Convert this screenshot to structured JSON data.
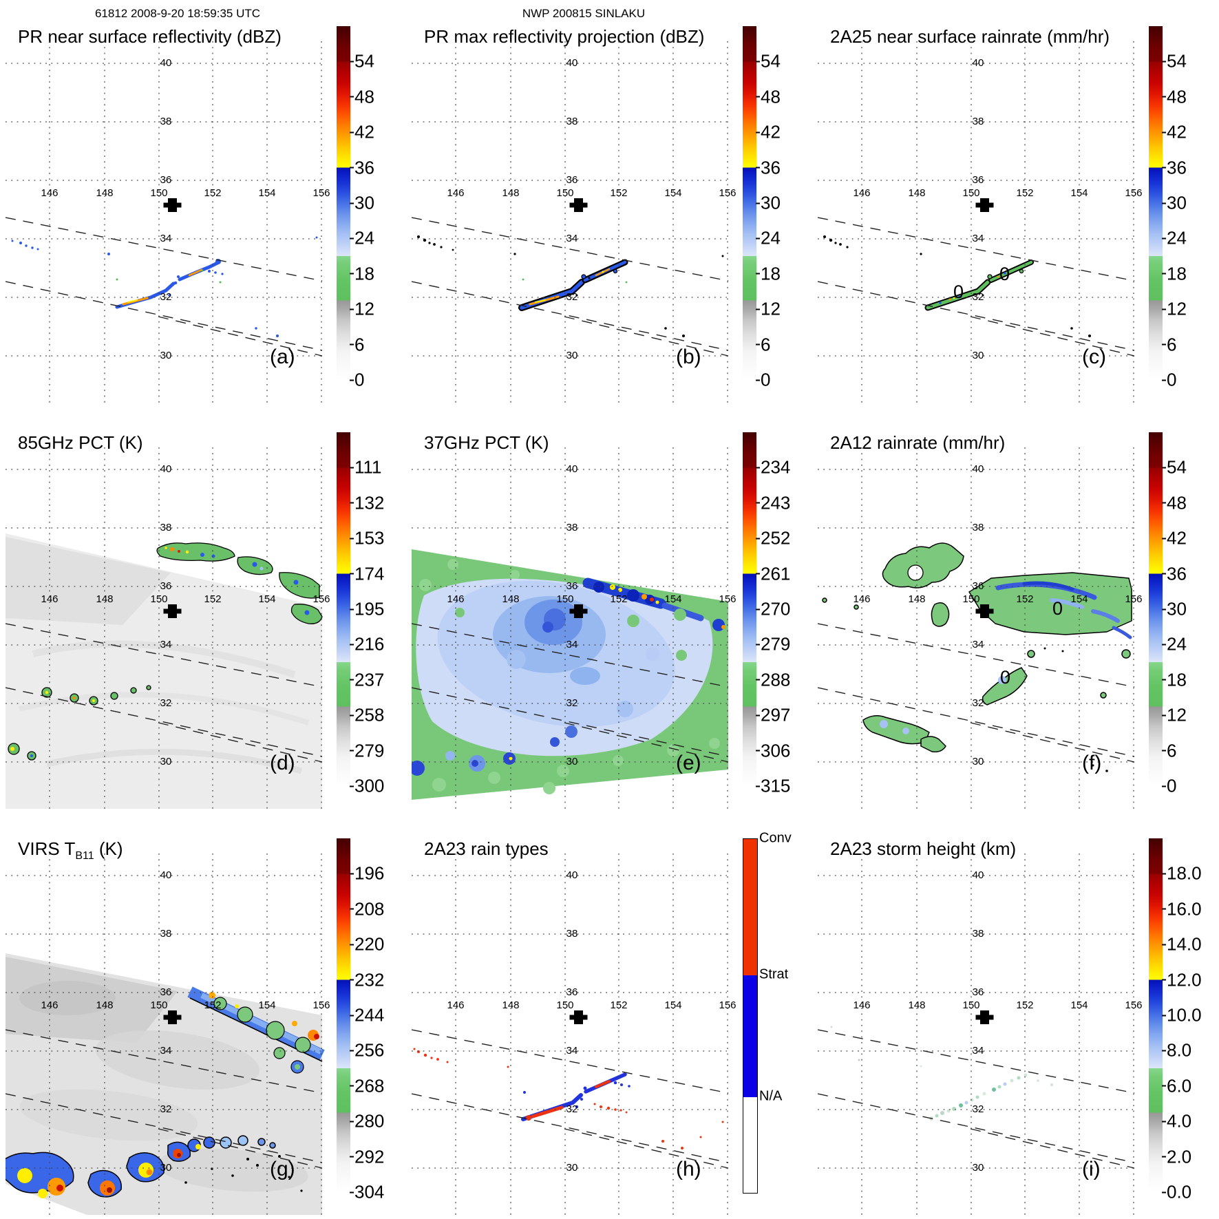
{
  "figure": {
    "header_left": "61812 2008-9-20 18:59:35 UTC",
    "header_center": "NWP 200815 SINLAKU"
  },
  "maps": {
    "lon_labels": [
      "146",
      "148",
      "150",
      "152",
      "154",
      "156"
    ],
    "lat_labels": [
      "40",
      "38",
      "36",
      "34",
      "32",
      "30"
    ],
    "contour_zero": "0"
  },
  "panels": [
    {
      "id": "a",
      "letter": "(a)",
      "header": "61812 2008-9-20 18:59:35 UTC",
      "title": "PR near surface reflectivity (dBZ)",
      "colorbar": {
        "type": "reflectivity",
        "ticks": [
          "54",
          "48",
          "42",
          "36",
          "30",
          "24",
          "18",
          "12",
          "6",
          "0"
        ]
      }
    },
    {
      "id": "b",
      "letter": "(b)",
      "header": "NWP 200815 SINLAKU",
      "title": "PR max reflectivity projection (dBZ)",
      "colorbar": {
        "type": "reflectivity",
        "ticks": [
          "54",
          "48",
          "42",
          "36",
          "30",
          "24",
          "18",
          "12",
          "6",
          "0"
        ]
      }
    },
    {
      "id": "c",
      "letter": "(c)",
      "title": "2A25 near surface rainrate (mm/hr)",
      "colorbar": {
        "type": "reflectivity",
        "ticks": [
          "54",
          "48",
          "42",
          "36",
          "30",
          "24",
          "18",
          "12",
          "6",
          "0"
        ]
      }
    },
    {
      "id": "d",
      "letter": "(d)",
      "title": "85GHz PCT (K)",
      "colorbar": {
        "type": "pct",
        "ticks": [
          "111",
          "132",
          "153",
          "174",
          "195",
          "216",
          "237",
          "258",
          "279",
          "300"
        ]
      }
    },
    {
      "id": "e",
      "letter": "(e)",
      "title": "37GHz PCT (K)",
      "colorbar": {
        "type": "pct",
        "ticks": [
          "234",
          "243",
          "252",
          "261",
          "270",
          "279",
          "288",
          "297",
          "306",
          "315"
        ]
      }
    },
    {
      "id": "f",
      "letter": "(f)",
      "title": "2A12 rainrate (mm/hr)",
      "colorbar": {
        "type": "reflectivity",
        "ticks": [
          "54",
          "48",
          "42",
          "36",
          "30",
          "24",
          "18",
          "12",
          "6",
          "0"
        ]
      }
    },
    {
      "id": "g",
      "letter": "(g)",
      "title_pre": "VIRS T",
      "title_sub": "B11",
      "title_post": " (K)",
      "colorbar": {
        "type": "pct",
        "ticks": [
          "196",
          "208",
          "220",
          "232",
          "244",
          "256",
          "268",
          "280",
          "292",
          "304"
        ]
      }
    },
    {
      "id": "h",
      "letter": "(h)",
      "title": "2A23 rain types",
      "colorbar": {
        "type": "raintype",
        "labels": [
          "Conv",
          "Strat",
          "N/A"
        ]
      }
    },
    {
      "id": "i",
      "letter": "(i)",
      "title": "2A23 storm height (km)",
      "colorbar": {
        "type": "height",
        "ticks": [
          "18.0",
          "16.0",
          "14.0",
          "12.0",
          "10.0",
          "8.0",
          "6.0",
          "4.0",
          "2.0",
          "0.0"
        ]
      }
    }
  ],
  "chart_data": {
    "type": "heatmap",
    "layout": "3x3 geographic map panels, shared grid",
    "geo": {
      "lon_ticks": [
        146,
        148,
        150,
        152,
        154,
        156
      ],
      "lat_ticks": [
        40,
        38,
        36,
        34,
        32,
        30
      ],
      "lon_range": [
        144.4,
        157.2
      ],
      "lat_range": [
        28.4,
        40.8
      ],
      "grid": "dotted",
      "swath_edges": "three dashed diagonal lines sloping down to the east",
      "storm_center_marker": {
        "lon": 150.5,
        "lat": 35.2,
        "symbol": "black cross"
      }
    },
    "panels": [
      {
        "id": "a",
        "title": "PR near surface reflectivity (dBZ)",
        "units": "dBZ",
        "colorbar_ticks": [
          54,
          48,
          42,
          36,
          30,
          24,
          18,
          12,
          6,
          0
        ],
        "colorbar_over": ">54 dark maroon",
        "features": "broken narrow rainband from about (148.6E,31.6N) to (152.3E,33.1N) with 20-45 dBZ cells (blue with orange/yellow cores); weak scattered echoes near 145-146E,33.3N"
      },
      {
        "id": "b",
        "title": "PR max reflectivity projection (dBZ)",
        "units": "dBZ",
        "colorbar_ticks": [
          54,
          48,
          42,
          36,
          30,
          24,
          18,
          12,
          6,
          0
        ],
        "features": "same rainband as (a) but black-outlined, broader, with blue/orange/yellow interior; scattered black specks west of band"
      },
      {
        "id": "c",
        "title": "2A25 near surface rainrate (mm/hr)",
        "units": "mm/hr",
        "colorbar_ticks": [
          54,
          48,
          42,
          36,
          30,
          24,
          18,
          12,
          6,
          0
        ],
        "features": "rainband outlined in black filled mostly green (light rain) with small blue/orange flecks; two 0 mm/hr contour labels on the band"
      },
      {
        "id": "d",
        "title": "85GHz PCT (K)",
        "units": "K",
        "colorbar_ticks": [
          111,
          132,
          153,
          174,
          195,
          216,
          237,
          258,
          279,
          300
        ],
        "features": "light gray TMI swath covering most of panel; black-outlined green/blue/orange ice-scattering band near 36N,150-156E; small outlined cells near 32N,146.5-149E and 31N,144.5E"
      },
      {
        "id": "e",
        "title": "37GHz PCT (K)",
        "units": "K",
        "colorbar_ticks": [
          234,
          243,
          252,
          261,
          270,
          279,
          288,
          297,
          306,
          315
        ],
        "features": "full swath colored: green (~288-300K) edges, pale blue (~279K) interior, darker blue (~270K) core near 34N,150E, dark blue band with yellow/orange/red minima near 36N,151-153E, blue cells near 31N,147-149E"
      },
      {
        "id": "f",
        "title": "2A12 rainrate (mm/hr)",
        "units": "mm/hr",
        "colorbar_ticks": [
          54,
          48,
          42,
          36,
          30,
          24,
          18,
          12,
          6,
          0
        ],
        "features": "black-outlined green light-rain regions near 35.5N,147-149E and a large region 34-35.5N,150-157E containing blue (12-30 mm/hr) streaks; smaller green cells near 31-32N; 0 contour labels"
      },
      {
        "id": "g",
        "title": "VIRS TB11 (K)",
        "units": "K",
        "colorbar_ticks": [
          196,
          208,
          220,
          232,
          244,
          256,
          268,
          280,
          292,
          304
        ],
        "features": "grayscale cloud field over whole swath; deep convective band (blue/green outline with yellow/orange/red cold tops <232K) from 29.5N,144.5E to 32N,150E; blue cloud line 32.5N,151-153E; cold green/blue band with orange cells along 36N,151-157E"
      },
      {
        "id": "h",
        "title": "2A23 rain types",
        "categories": [
          "Conv",
          "Strat",
          "N/A"
        ],
        "features": "rainband pixels classified: blue stratiform with embedded red convective cores along band from 148.6E,31.6N to 152.3E,33.1N; scattered red convective specks near 145E,33.5N and 152-153E,31.8N"
      },
      {
        "id": "i",
        "title": "2A23 storm height (km)",
        "units": "km",
        "colorbar_ticks": [
          18.0,
          16.0,
          14.0,
          12.0,
          10.0,
          8.0,
          6.0,
          4.0,
          2.0,
          0.0
        ],
        "features": "sparse pale green/teal storm-height pixels (~4-6 km) along the same rainband"
      }
    ]
  }
}
